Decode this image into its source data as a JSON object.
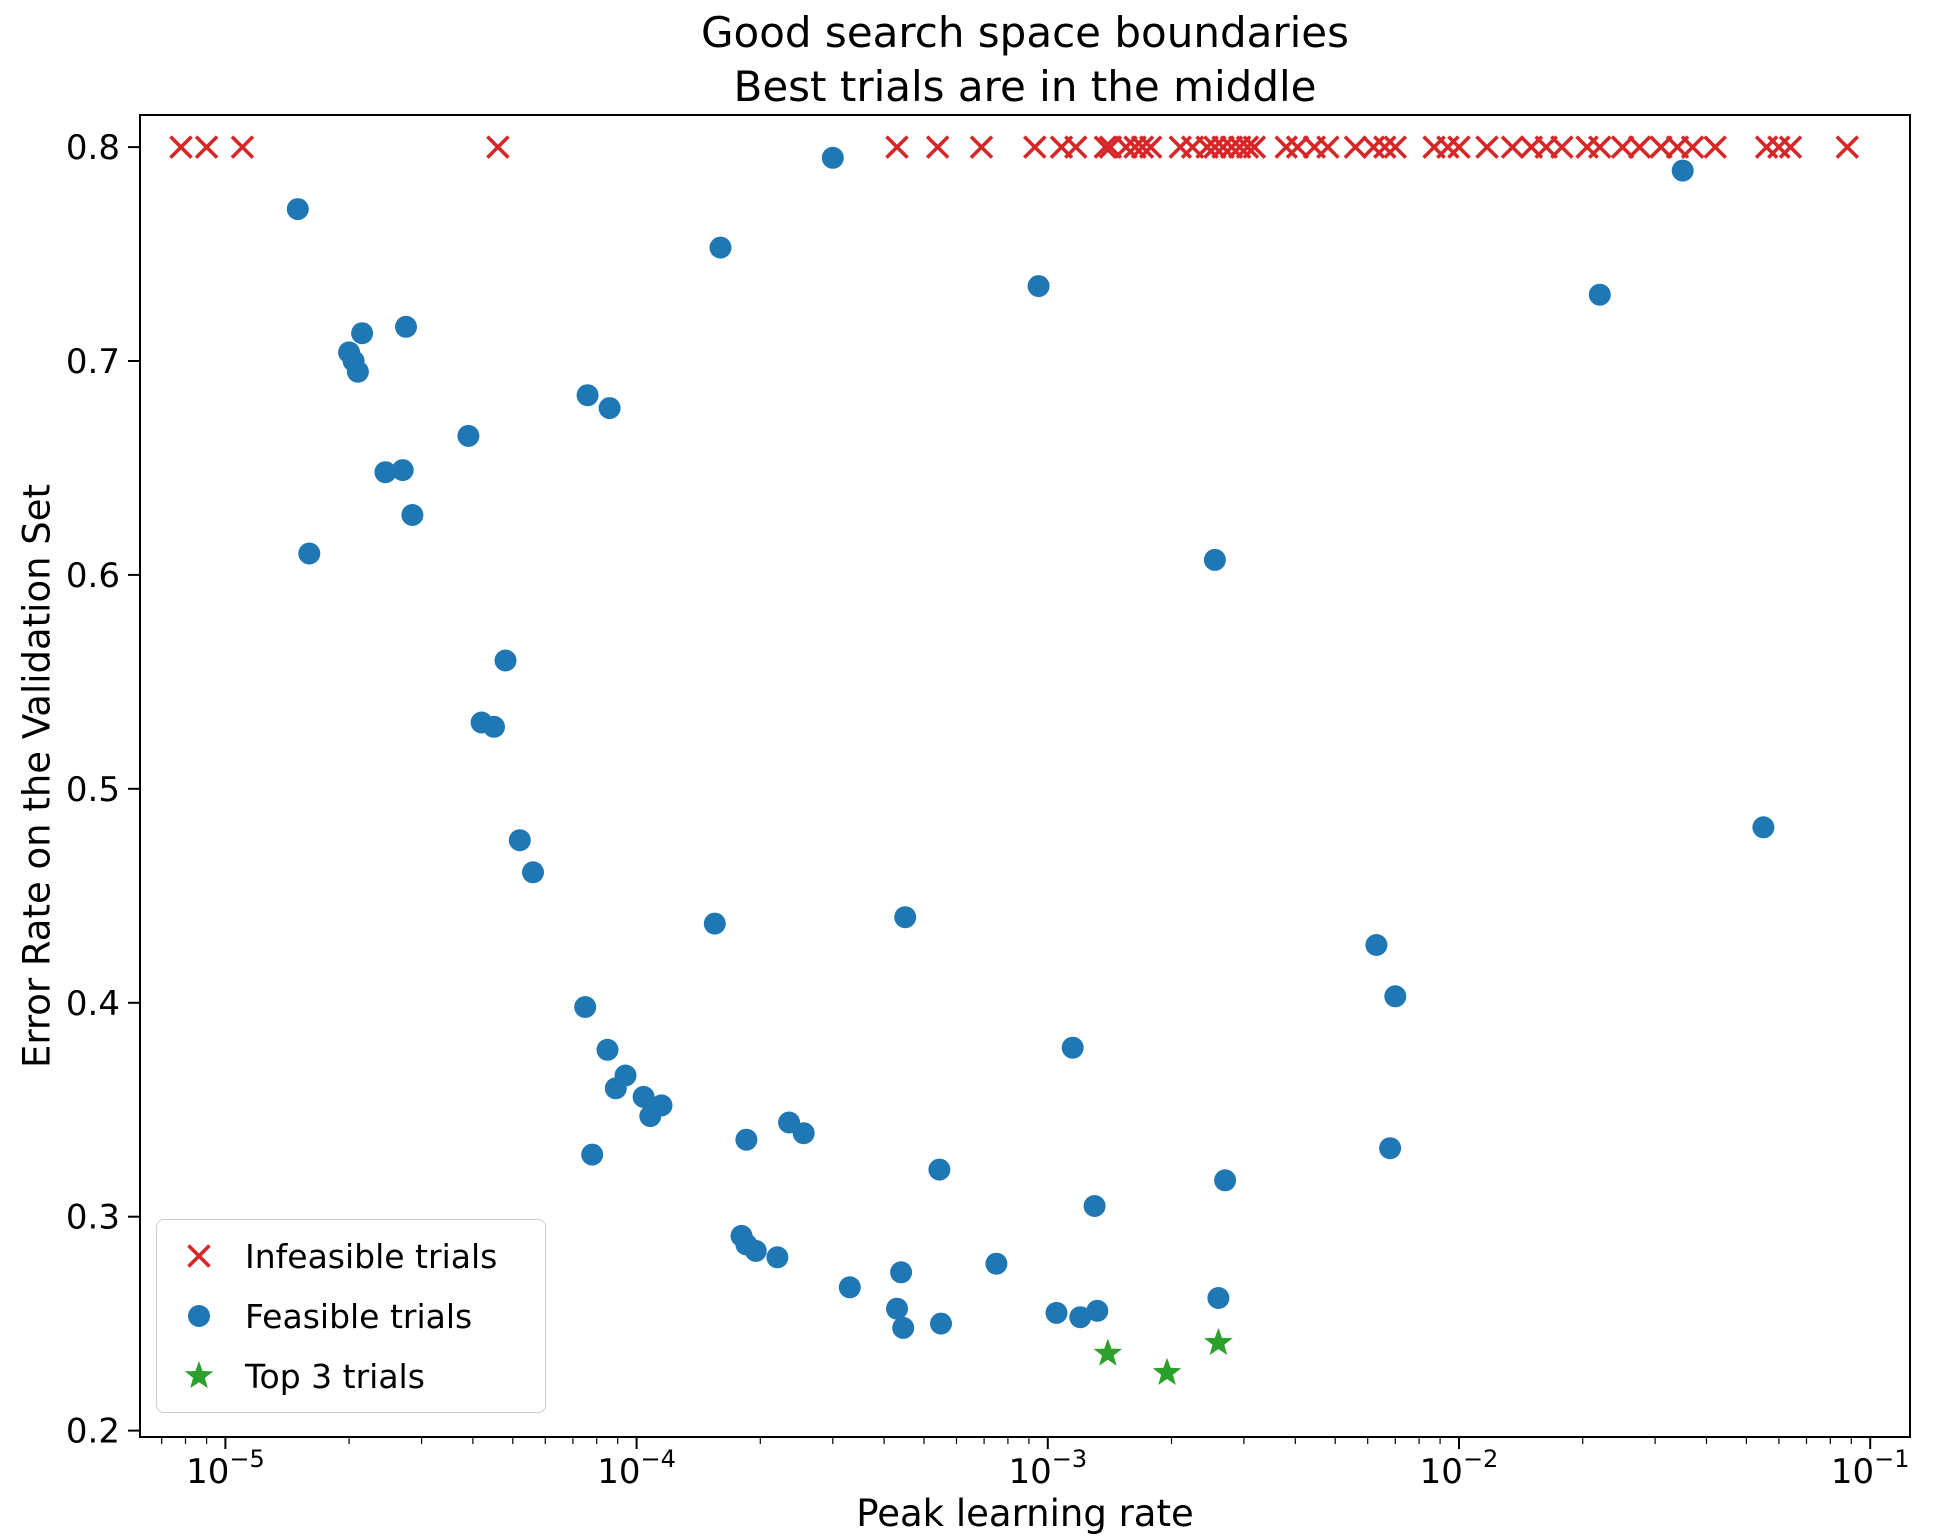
{
  "figure": {
    "background": "#ffffff"
  },
  "chart_data": {
    "type": "scatter",
    "title_line1": "Good search space boundaries",
    "title_line2": "Best trials are in the middle",
    "xlabel": "Peak learning rate",
    "ylabel": "Error Rate on the Validation Set",
    "x_scale": "log",
    "xlim": [
      6.2e-06,
      0.125
    ],
    "ylim": [
      0.197,
      0.815
    ],
    "x_tick_exponents": [
      -5,
      -4,
      -3,
      -2,
      -1
    ],
    "y_ticks": [
      0.2,
      0.3,
      0.4,
      0.5,
      0.6,
      0.7,
      0.8
    ],
    "grid": false,
    "legend_position": "lower left",
    "colors": {
      "infeasible": "#d62728",
      "feasible": "#1f77b4",
      "top3": "#2ca02c",
      "axes": "#000000"
    },
    "series": [
      {
        "name": "Infeasible trials",
        "marker": "x",
        "color": "#d62728",
        "y_constant": 0.8,
        "x_values": [
          7.8e-06,
          9e-06,
          1.1e-05,
          4.6e-05,
          0.00043,
          0.00054,
          0.00069,
          0.00093,
          0.00108,
          0.00117,
          0.00138,
          0.00142,
          0.00155,
          0.00163,
          0.0017,
          0.00178,
          0.0021,
          0.00225,
          0.00244,
          0.00255,
          0.00267,
          0.0028,
          0.00293,
          0.00306,
          0.00318,
          0.0038,
          0.00405,
          0.00445,
          0.0048,
          0.0056,
          0.0062,
          0.0066,
          0.007,
          0.0087,
          0.0094,
          0.01,
          0.0117,
          0.0135,
          0.015,
          0.0163,
          0.0178,
          0.0205,
          0.022,
          0.025,
          0.0275,
          0.031,
          0.034,
          0.037,
          0.042,
          0.056,
          0.06,
          0.064,
          0.088
        ]
      },
      {
        "name": "Feasible trials",
        "marker": "circle",
        "color": "#1f77b4",
        "points": [
          [
            1.5e-05,
            0.771
          ],
          [
            1.6e-05,
            0.61
          ],
          [
            2e-05,
            0.704
          ],
          [
            2.05e-05,
            0.7
          ],
          [
            2.15e-05,
            0.713
          ],
          [
            2.1e-05,
            0.695
          ],
          [
            2.75e-05,
            0.716
          ],
          [
            2.45e-05,
            0.648
          ],
          [
            2.7e-05,
            0.649
          ],
          [
            2.85e-05,
            0.628
          ],
          [
            3.9e-05,
            0.665
          ],
          [
            4.2e-05,
            0.531
          ],
          [
            4.5e-05,
            0.529
          ],
          [
            4.8e-05,
            0.56
          ],
          [
            5.2e-05,
            0.476
          ],
          [
            5.6e-05,
            0.461
          ],
          [
            7.6e-05,
            0.684
          ],
          [
            8.6e-05,
            0.678
          ],
          [
            7.5e-05,
            0.398
          ],
          [
            7.8e-05,
            0.329
          ],
          [
            8.5e-05,
            0.378
          ],
          [
            8.9e-05,
            0.36
          ],
          [
            9.4e-05,
            0.366
          ],
          [
            0.000104,
            0.356
          ],
          [
            0.000108,
            0.347
          ],
          [
            0.000115,
            0.352
          ],
          [
            0.000155,
            0.437
          ],
          [
            0.00016,
            0.753
          ],
          [
            0.00018,
            0.291
          ],
          [
            0.000185,
            0.287
          ],
          [
            0.000195,
            0.284
          ],
          [
            0.00022,
            0.281
          ],
          [
            0.000185,
            0.336
          ],
          [
            0.000235,
            0.344
          ],
          [
            0.000255,
            0.339
          ],
          [
            0.0003,
            0.795
          ],
          [
            0.00033,
            0.267
          ],
          [
            0.00045,
            0.44
          ],
          [
            0.00044,
            0.274
          ],
          [
            0.00043,
            0.257
          ],
          [
            0.000445,
            0.248
          ],
          [
            0.00055,
            0.25
          ],
          [
            0.000545,
            0.322
          ],
          [
            0.00075,
            0.278
          ],
          [
            0.00095,
            0.735
          ],
          [
            0.00115,
            0.379
          ],
          [
            0.00105,
            0.255
          ],
          [
            0.0012,
            0.253
          ],
          [
            0.00132,
            0.256
          ],
          [
            0.0013,
            0.305
          ],
          [
            0.00255,
            0.607
          ],
          [
            0.0026,
            0.262
          ],
          [
            0.0027,
            0.317
          ],
          [
            0.0063,
            0.427
          ],
          [
            0.007,
            0.403
          ],
          [
            0.0068,
            0.332
          ],
          [
            0.022,
            0.731
          ],
          [
            0.035,
            0.789
          ],
          [
            0.055,
            0.482
          ]
        ]
      },
      {
        "name": "Top 3 trials",
        "marker": "star",
        "color": "#2ca02c",
        "points": [
          [
            0.0014,
            0.236
          ],
          [
            0.00195,
            0.227
          ],
          [
            0.0026,
            0.241
          ]
        ]
      }
    ],
    "legend": {
      "items": [
        {
          "label": "Infeasible trials",
          "marker": "x"
        },
        {
          "label": "Feasible trials",
          "marker": "circle"
        },
        {
          "label": "Top 3 trials",
          "marker": "star"
        }
      ]
    }
  }
}
